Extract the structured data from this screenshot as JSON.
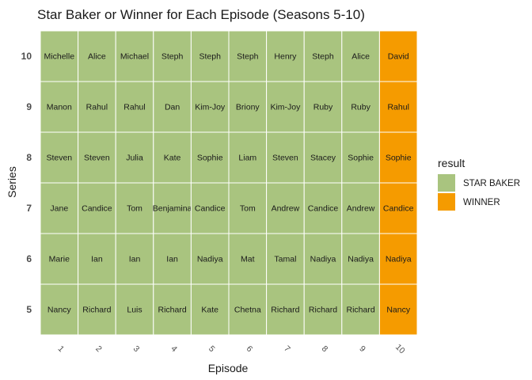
{
  "chart_data": {
    "type": "heatmap",
    "title": "Star Baker or Winner for Each Episode (Seasons 5-10)",
    "xlabel": "Episode",
    "ylabel": "Series",
    "x_categories": [
      "1",
      "2",
      "3",
      "4",
      "5",
      "6",
      "7",
      "8",
      "9",
      "10"
    ],
    "y_categories": [
      "10",
      "9",
      "8",
      "7",
      "6",
      "5"
    ],
    "legend": {
      "title": "result",
      "placement": "right",
      "entries": [
        {
          "label": "STAR BAKER",
          "color": "#a9c47f"
        },
        {
          "label": "WINNER",
          "color": "#f59b00"
        }
      ]
    },
    "rows": [
      {
        "series": "10",
        "names": [
          "Michelle",
          "Alice",
          "Michael",
          "Steph",
          "Steph",
          "Steph",
          "Henry",
          "Steph",
          "Alice",
          "David"
        ],
        "results": [
          "STAR BAKER",
          "STAR BAKER",
          "STAR BAKER",
          "STAR BAKER",
          "STAR BAKER",
          "STAR BAKER",
          "STAR BAKER",
          "STAR BAKER",
          "STAR BAKER",
          "WINNER"
        ]
      },
      {
        "series": "9",
        "names": [
          "Manon",
          "Rahul",
          "Rahul",
          "Dan",
          "Kim-Joy",
          "Briony",
          "Kim-Joy",
          "Ruby",
          "Ruby",
          "Rahul"
        ],
        "results": [
          "STAR BAKER",
          "STAR BAKER",
          "STAR BAKER",
          "STAR BAKER",
          "STAR BAKER",
          "STAR BAKER",
          "STAR BAKER",
          "STAR BAKER",
          "STAR BAKER",
          "WINNER"
        ]
      },
      {
        "series": "8",
        "names": [
          "Steven",
          "Steven",
          "Julia",
          "Kate",
          "Sophie",
          "Liam",
          "Steven",
          "Stacey",
          "Sophie",
          "Sophie"
        ],
        "results": [
          "STAR BAKER",
          "STAR BAKER",
          "STAR BAKER",
          "STAR BAKER",
          "STAR BAKER",
          "STAR BAKER",
          "STAR BAKER",
          "STAR BAKER",
          "STAR BAKER",
          "WINNER"
        ]
      },
      {
        "series": "7",
        "names": [
          "Jane",
          "Candice",
          "Tom",
          "Benjamina",
          "Candice",
          "Tom",
          "Andrew",
          "Candice",
          "Andrew",
          "Candice"
        ],
        "results": [
          "STAR BAKER",
          "STAR BAKER",
          "STAR BAKER",
          "STAR BAKER",
          "STAR BAKER",
          "STAR BAKER",
          "STAR BAKER",
          "STAR BAKER",
          "STAR BAKER",
          "WINNER"
        ]
      },
      {
        "series": "6",
        "names": [
          "Marie",
          "Ian",
          "Ian",
          "Ian",
          "Nadiya",
          "Mat",
          "Tamal",
          "Nadiya",
          "Nadiya",
          "Nadiya"
        ],
        "results": [
          "STAR BAKER",
          "STAR BAKER",
          "STAR BAKER",
          "STAR BAKER",
          "STAR BAKER",
          "STAR BAKER",
          "STAR BAKER",
          "STAR BAKER",
          "STAR BAKER",
          "WINNER"
        ]
      },
      {
        "series": "5",
        "names": [
          "Nancy",
          "Richard",
          "Luis",
          "Richard",
          "Kate",
          "Chetna",
          "Richard",
          "Richard",
          "Richard",
          "Nancy"
        ],
        "results": [
          "STAR BAKER",
          "STAR BAKER",
          "STAR BAKER",
          "STAR BAKER",
          "STAR BAKER",
          "STAR BAKER",
          "STAR BAKER",
          "STAR BAKER",
          "STAR BAKER",
          "WINNER"
        ]
      }
    ]
  }
}
